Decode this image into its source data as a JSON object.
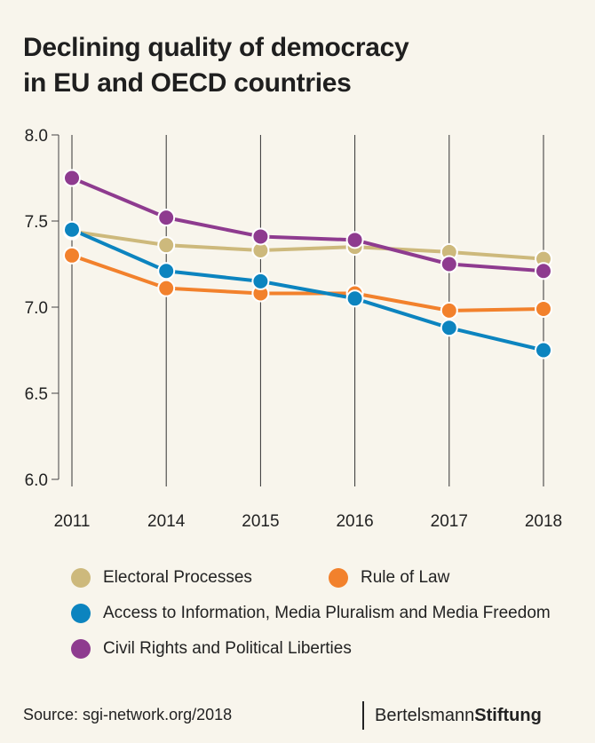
{
  "title": {
    "line1": "Declining quality of democracy",
    "line2": "in EU and OECD countries"
  },
  "chart_data": {
    "type": "line",
    "categories": [
      "2011",
      "2014",
      "2015",
      "2016",
      "2017",
      "2018"
    ],
    "ylim": [
      6.0,
      8.0
    ],
    "yticks": [
      6.0,
      6.5,
      7.0,
      7.5,
      8.0
    ],
    "ytick_labels": [
      "6.0",
      "6.5",
      "7.0",
      "7.5",
      "8.0"
    ],
    "xlabel": "",
    "ylabel": "",
    "series": [
      {
        "name": "Electoral Processes",
        "color": "#cdb97c",
        "values": [
          7.44,
          7.36,
          7.33,
          7.35,
          7.32,
          7.28
        ]
      },
      {
        "name": "Rule of Law",
        "color": "#f2812c",
        "values": [
          7.3,
          7.11,
          7.08,
          7.08,
          6.98,
          6.99
        ]
      },
      {
        "name": "Access to Information, Media Pluralism and Media Freedom",
        "color": "#0c84bf",
        "values": [
          7.45,
          7.21,
          7.15,
          7.05,
          6.88,
          6.75
        ]
      },
      {
        "name": "Civil Rights and Political Liberties",
        "color": "#8e3b8f",
        "values": [
          7.75,
          7.52,
          7.41,
          7.39,
          7.25,
          7.21
        ]
      }
    ]
  },
  "footer": {
    "source": "Source: sgi-network.org/2018",
    "brand_light": "Bertelsmann",
    "brand_bold": "Stiftung"
  }
}
